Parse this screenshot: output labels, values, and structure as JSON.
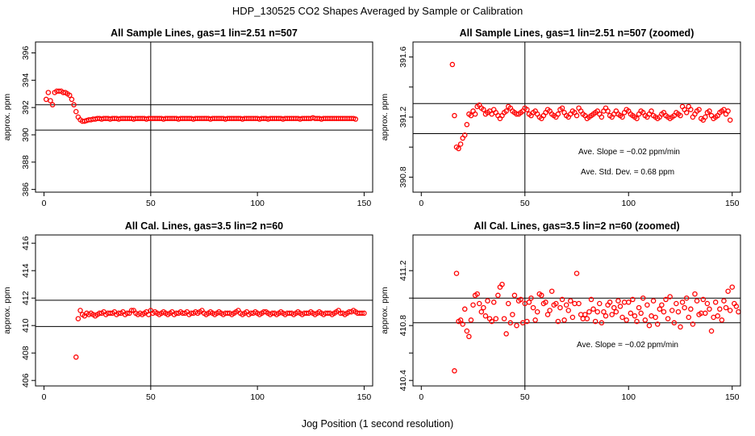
{
  "figure": {
    "title": "HDP_130525  CO2 Shapes Averaged by Sample or Calibration",
    "xlabel": "Jog Position (1 second resolution)"
  },
  "chart_data": [
    {
      "type": "scatter",
      "title": "All Sample Lines, gas=1 lin=2.51 n=507",
      "ylabel": "approx. ppm",
      "xlim": [
        -4,
        154
      ],
      "ylim": [
        385.8,
        396.8
      ],
      "xticks": [
        0,
        50,
        100,
        150
      ],
      "yticks": [
        386,
        388,
        390,
        392,
        394,
        396
      ],
      "vline": 50,
      "hlines": [
        390.35,
        392.2
      ],
      "marker_color": "#ff0000",
      "annotations": [],
      "series": [
        {
          "start_x": 1,
          "y": [
            392.6,
            393.1,
            392.5,
            392.2,
            393.1,
            393.2,
            393.2,
            393.2,
            393.1,
            393.1,
            393.0,
            392.9,
            392.6,
            392.2,
            391.7,
            391.3,
            391.1,
            391.0,
            391.0,
            391.05,
            391.1,
            391.1,
            391.15,
            391.15,
            391.2,
            391.2,
            391.15,
            391.2,
            391.2,
            391.2,
            391.15,
            391.2,
            391.2,
            391.2,
            391.15,
            391.2,
            391.2,
            391.2,
            391.2,
            391.2,
            391.2,
            391.15,
            391.2,
            391.2,
            391.2,
            391.2,
            391.2,
            391.15,
            391.2,
            391.2,
            391.2,
            391.2,
            391.2,
            391.2,
            391.2,
            391.15,
            391.2,
            391.2,
            391.2,
            391.2,
            391.2,
            391.2,
            391.15,
            391.2,
            391.2,
            391.2,
            391.2,
            391.2,
            391.2,
            391.15,
            391.2,
            391.2,
            391.2,
            391.2,
            391.2,
            391.2,
            391.2,
            391.15,
            391.2,
            391.2,
            391.2,
            391.2,
            391.2,
            391.2,
            391.15,
            391.2,
            391.2,
            391.2,
            391.2,
            391.2,
            391.2,
            391.2,
            391.15,
            391.2,
            391.2,
            391.2,
            391.2,
            391.2,
            391.2,
            391.2,
            391.15,
            391.2,
            391.2,
            391.2,
            391.15,
            391.2,
            391.2,
            391.2,
            391.2,
            391.2,
            391.2,
            391.15,
            391.2,
            391.2,
            391.2,
            391.2,
            391.2,
            391.2,
            391.2,
            391.15,
            391.2,
            391.2,
            391.2,
            391.2,
            391.2,
            391.25,
            391.2,
            391.2,
            391.2,
            391.15,
            391.2,
            391.2,
            391.2,
            391.2,
            391.2,
            391.2,
            391.2,
            391.2,
            391.2,
            391.2,
            391.2,
            391.2,
            391.2,
            391.2,
            391.2,
            391.15
          ]
        }
      ]
    },
    {
      "type": "scatter",
      "title": "All Sample Lines, gas=1 lin=2.51 n=507 (zoomed)",
      "ylabel": "approx. ppm",
      "xlim": [
        -4,
        154
      ],
      "ylim": [
        390.7,
        391.7
      ],
      "xticks": [
        0,
        50,
        100,
        150
      ],
      "yticks": [
        390.8,
        391.0,
        391.2,
        391.4,
        391.6
      ],
      "yticklabels": [
        "390.8",
        "",
        "391.2",
        "",
        "391.6"
      ],
      "vline": 50,
      "hlines": [
        391.09,
        391.29
      ],
      "marker_color": "#ff0000",
      "annotations": [
        "Ave. Slope =  −0.02  ppm/min",
        "Ave. Std. Dev. =  0.68  ppm"
      ],
      "series": [
        {
          "start_x": 15,
          "y": [
            391.55,
            391.21,
            391.0,
            390.99,
            391.02,
            391.06,
            391.08,
            391.15,
            391.22,
            391.21,
            391.24,
            391.22,
            391.27,
            391.28,
            391.26,
            391.25,
            391.22,
            391.23,
            391.24,
            391.22,
            391.25,
            391.23,
            391.21,
            391.19,
            391.21,
            391.23,
            391.24,
            391.27,
            391.26,
            391.24,
            391.23,
            391.22,
            391.22,
            391.23,
            391.24,
            391.26,
            391.25,
            391.22,
            391.21,
            391.23,
            391.24,
            391.22,
            391.2,
            391.19,
            391.21,
            391.23,
            391.25,
            391.24,
            391.22,
            391.21,
            391.2,
            391.22,
            391.25,
            391.26,
            391.23,
            391.21,
            391.2,
            391.22,
            391.24,
            391.23,
            391.21,
            391.26,
            391.24,
            391.22,
            391.21,
            391.19,
            391.2,
            391.21,
            391.22,
            391.23,
            391.24,
            391.22,
            391.2,
            391.24,
            391.26,
            391.24,
            391.21,
            391.2,
            391.22,
            391.24,
            391.22,
            391.21,
            391.2,
            391.23,
            391.25,
            391.24,
            391.22,
            391.21,
            391.2,
            391.19,
            391.22,
            391.24,
            391.23,
            391.21,
            391.2,
            391.22,
            391.24,
            391.21,
            391.2,
            391.19,
            391.2,
            391.22,
            391.23,
            391.21,
            391.2,
            391.19,
            391.2,
            391.21,
            391.23,
            391.22,
            391.21,
            391.27,
            391.25,
            391.23,
            391.27,
            391.25,
            391.2,
            391.22,
            391.24,
            391.25,
            391.19,
            391.18,
            391.2,
            391.23,
            391.24,
            391.21,
            391.19,
            391.2,
            391.21,
            391.23,
            391.24,
            391.25,
            391.22,
            391.24,
            391.18
          ]
        }
      ]
    },
    {
      "type": "scatter",
      "title": "All Cal. Lines, gas=3.5 lin=2 n=60",
      "ylabel": "approx. ppm",
      "xlim": [
        -4,
        154
      ],
      "ylim": [
        405.6,
        416.6
      ],
      "xticks": [
        0,
        50,
        100,
        150
      ],
      "yticks": [
        406,
        408,
        410,
        412,
        414,
        416
      ],
      "vline": 50,
      "hlines": [
        409.93,
        411.84
      ],
      "marker_color": "#ff0000",
      "annotations": [],
      "series": [
        {
          "start_x": 15,
          "y": [
            407.7,
            410.5,
            411.1,
            410.8,
            410.7,
            410.9,
            410.8,
            410.9,
            410.8,
            410.7,
            410.8,
            410.9,
            410.9,
            411.0,
            410.8,
            410.9,
            410.9,
            410.9,
            411.0,
            410.8,
            410.9,
            410.9,
            411.0,
            410.8,
            410.9,
            410.9,
            411.1,
            411.1,
            410.9,
            410.8,
            410.9,
            410.8,
            410.9,
            411.0,
            410.8,
            411.1,
            410.9,
            411.0,
            410.9,
            410.8,
            410.9,
            411.0,
            410.9,
            410.8,
            410.9,
            411.0,
            410.8,
            410.9,
            410.9,
            411.0,
            410.9,
            410.9,
            411.0,
            410.8,
            410.9,
            410.9,
            411.0,
            410.9,
            411.0,
            411.1,
            410.9,
            410.8,
            410.9,
            411.0,
            410.9,
            410.8,
            410.9,
            411.0,
            410.9,
            410.8,
            410.9,
            410.9,
            410.9,
            410.8,
            410.9,
            411.0,
            411.1,
            410.9,
            410.8,
            410.9,
            411.0,
            410.8,
            410.9,
            410.9,
            411.0,
            410.9,
            410.8,
            410.9,
            411.0,
            411.0,
            410.9,
            410.8,
            410.9,
            410.9,
            410.8,
            410.9,
            411.0,
            410.9,
            410.8,
            410.9,
            410.9,
            410.9,
            410.8,
            410.9,
            411.0,
            410.9,
            410.8,
            410.9,
            410.9,
            410.9,
            411.0,
            410.9,
            410.8,
            410.9,
            411.0,
            410.9,
            410.8,
            410.9,
            410.9,
            410.9,
            410.8,
            410.9,
            411.0,
            411.1,
            410.9,
            410.9,
            410.8,
            410.9,
            411.0,
            411.0,
            411.1,
            411.0,
            410.9,
            410.9,
            410.9,
            410.9
          ]
        }
      ]
    },
    {
      "type": "scatter",
      "title": "All Cal. Lines, gas=3.5 lin=2 n=60 (zoomed)",
      "ylabel": "approx. ppm",
      "xlim": [
        -4,
        154
      ],
      "ylim": [
        410.36,
        411.46
      ],
      "xticks": [
        0,
        50,
        100,
        150
      ],
      "yticks": [
        410.4,
        410.6,
        410.8,
        411.0,
        411.2
      ],
      "yticklabels": [
        "410.4",
        "",
        "410.8",
        "",
        "411.2"
      ],
      "vline": 50,
      "hlines": [
        410.82,
        411.0
      ],
      "marker_color": "#ff0000",
      "annotations": [
        "Ave. Slope =  −0.02  ppm/min"
      ],
      "series": [
        {
          "start_x": 16,
          "y": [
            410.47,
            411.18,
            410.83,
            410.84,
            410.81,
            410.92,
            410.76,
            410.72,
            410.84,
            410.95,
            411.02,
            411.03,
            410.96,
            410.9,
            410.93,
            410.87,
            410.98,
            410.85,
            410.83,
            410.97,
            410.85,
            411.02,
            411.08,
            411.1,
            410.85,
            410.74,
            410.96,
            410.82,
            410.88,
            411.02,
            410.8,
            410.98,
            410.99,
            410.82,
            410.96,
            410.83,
            410.97,
            411.0,
            410.93,
            410.84,
            410.9,
            411.03,
            411.02,
            410.96,
            410.97,
            410.88,
            410.91,
            411.05,
            410.95,
            410.96,
            410.83,
            410.93,
            410.99,
            410.84,
            410.95,
            410.91,
            410.98,
            410.86,
            410.96,
            411.18,
            410.96,
            410.88,
            410.85,
            410.88,
            410.85,
            410.9,
            410.99,
            410.92,
            410.83,
            410.9,
            410.96,
            410.82,
            410.9,
            410.87,
            410.95,
            410.97,
            410.88,
            410.93,
            410.9,
            410.98,
            410.94,
            410.86,
            410.97,
            410.84,
            410.97,
            410.89,
            410.99,
            410.87,
            410.83,
            410.93,
            410.89,
            411.0,
            410.84,
            410.95,
            410.8,
            410.87,
            410.98,
            410.86,
            410.81,
            410.92,
            410.95,
            410.9,
            410.99,
            410.85,
            411.01,
            410.91,
            410.82,
            410.96,
            410.9,
            410.79,
            410.97,
            410.93,
            411.0,
            410.86,
            410.92,
            410.81,
            411.03,
            410.98,
            410.88,
            410.89,
            410.99,
            410.89,
            410.96,
            410.92,
            410.76,
            410.86,
            410.97,
            410.87,
            410.92,
            410.84,
            410.98,
            410.93,
            411.05,
            410.91,
            411.08,
            410.96,
            410.94,
            410.9
          ]
        }
      ]
    }
  ]
}
